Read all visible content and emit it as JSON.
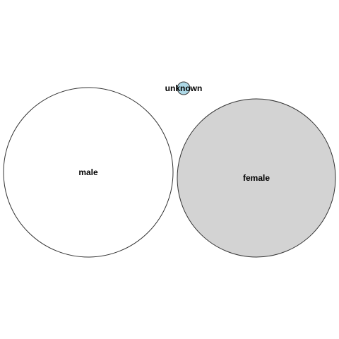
{
  "bubbles": [
    {
      "label": "male",
      "color": "#ffffff"
    },
    {
      "label": "female",
      "color": "#d3d3d3"
    },
    {
      "label": "unknown",
      "color": "#add8e6"
    }
  ]
}
